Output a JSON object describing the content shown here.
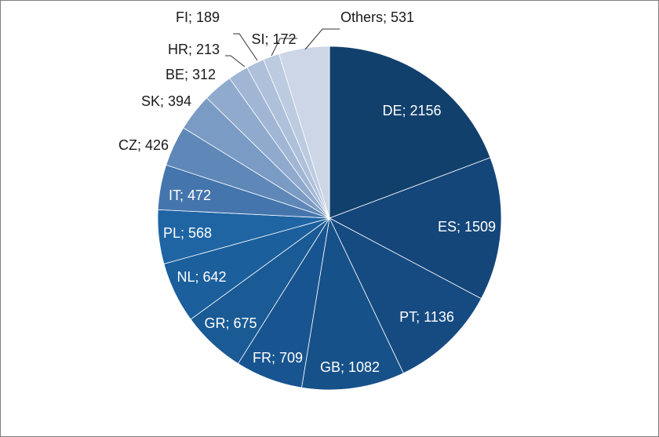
{
  "chart_data": {
    "type": "pie",
    "title": "",
    "legend": "none",
    "slices": [
      {
        "label": "DE; 2156",
        "name": "DE",
        "value": 2156,
        "color": "#12406c"
      },
      {
        "label": "ES; 1509",
        "name": "ES",
        "value": 1509,
        "color": "#14467a"
      },
      {
        "label": "PT; 1136",
        "name": "PT",
        "value": 1136,
        "color": "#164b82"
      },
      {
        "label": "GB; 1082",
        "name": "GB",
        "value": 1082,
        "color": "#175189"
      },
      {
        "label": "FR; 709",
        "name": "FR",
        "value": 709,
        "color": "#185590"
      },
      {
        "label": "GR; 675",
        "name": "GR",
        "value": 675,
        "color": "#1a5a95"
      },
      {
        "label": "NL; 642",
        "name": "NL",
        "value": 642,
        "color": "#1b5f9c"
      },
      {
        "label": "PL; 568",
        "name": "PL",
        "value": 568,
        "color": "#1f65a4"
      },
      {
        "label": "IT; 472",
        "name": "IT",
        "value": 472,
        "color": "#4475ad"
      },
      {
        "label": "CZ; 426",
        "name": "CZ",
        "value": 426,
        "color": "#5f87b8"
      },
      {
        "label": "SK; 394",
        "name": "SK",
        "value": 394,
        "color": "#7a9bc4"
      },
      {
        "label": "BE; 312",
        "name": "BE",
        "value": 312,
        "color": "#90aacd"
      },
      {
        "label": "HR; 213",
        "name": "HR",
        "value": 213,
        "color": "#a1b6d4"
      },
      {
        "label": "FI; 189",
        "name": "FI",
        "value": 189,
        "color": "#afc0da"
      },
      {
        "label": "SI; 172",
        "name": "SI",
        "value": 172,
        "color": "#bccbe0"
      },
      {
        "label": "Others; 531",
        "name": "Others",
        "value": 531,
        "color": "#ccd6e6"
      }
    ]
  }
}
